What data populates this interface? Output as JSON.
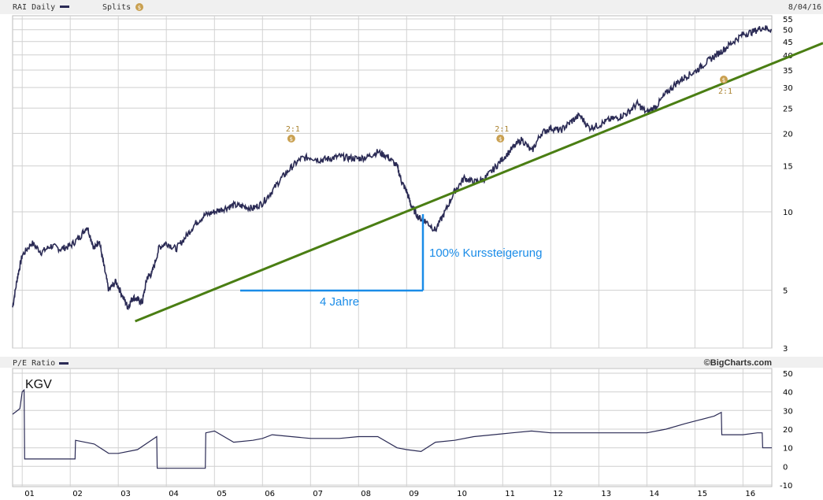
{
  "header": {
    "symbol_label": "RAI Daily",
    "splits_label": "Splits",
    "date": "8/04/16",
    "pe_label": "P/E Ratio",
    "brand": "©BigCharts.com",
    "series_color": "#2b2b55",
    "split_badge_color": "#c9a050"
  },
  "annotations": {
    "kursanstieg": "100% Kurssteigerung",
    "jahre": "4 Jahre",
    "kgv": "KGV"
  },
  "chart_data": [
    {
      "type": "line",
      "title": "RAI Daily",
      "yscale": "log",
      "ylim": [
        3,
        55
      ],
      "xlim": [
        2000.8,
        2016.6
      ],
      "grid": true,
      "y_ticks": [
        3,
        5,
        10,
        15,
        20,
        25,
        30,
        35,
        40,
        45,
        50,
        55
      ],
      "x_ticks": [
        "01",
        "02",
        "03",
        "04",
        "05",
        "06",
        "07",
        "08",
        "09",
        "10",
        "11",
        "12",
        "13",
        "14",
        "15",
        "16"
      ],
      "series": [
        {
          "name": "RAI Daily",
          "x": [
            2000.8,
            2000.9,
            2001.0,
            2001.2,
            2001.4,
            2001.6,
            2001.8,
            2002.0,
            2002.2,
            2002.35,
            2002.5,
            2002.6,
            2002.7,
            2002.8,
            2002.95,
            2003.1,
            2003.2,
            2003.3,
            2003.4,
            2003.5,
            2003.6,
            2003.7,
            2003.85,
            2004.0,
            2004.2,
            2004.4,
            2004.6,
            2004.8,
            2005.0,
            2005.2,
            2005.4,
            2005.6,
            2005.8,
            2006.0,
            2006.2,
            2006.4,
            2006.6,
            2006.8,
            2007.0,
            2007.2,
            2007.4,
            2007.6,
            2007.8,
            2008.0,
            2008.2,
            2008.4,
            2008.6,
            2008.8,
            2008.9,
            2009.0,
            2009.1,
            2009.25,
            2009.4,
            2009.6,
            2009.8,
            2010.0,
            2010.2,
            2010.4,
            2010.6,
            2010.8,
            2011.0,
            2011.2,
            2011.4,
            2011.6,
            2011.8,
            2012.0,
            2012.2,
            2012.4,
            2012.6,
            2012.8,
            2013.0,
            2013.2,
            2013.4,
            2013.6,
            2013.8,
            2014.0,
            2014.2,
            2014.4,
            2014.6,
            2014.8,
            2015.0,
            2015.2,
            2015.4,
            2015.6,
            2015.8,
            2016.0,
            2016.2,
            2016.4,
            2016.6
          ],
          "y": [
            4.3,
            5.6,
            6.8,
            7.6,
            7.0,
            7.4,
            7.2,
            7.4,
            8.0,
            8.8,
            7.2,
            7.8,
            6.2,
            5.0,
            5.4,
            4.7,
            4.3,
            4.7,
            4.6,
            4.5,
            5.6,
            5.8,
            7.3,
            7.6,
            7.2,
            8.0,
            9.0,
            9.7,
            10.0,
            10.3,
            10.6,
            10.5,
            10.3,
            10.8,
            12.0,
            13.5,
            14.8,
            16.0,
            16.2,
            15.8,
            16.0,
            16.3,
            16.1,
            16.0,
            16.3,
            17.0,
            16.3,
            15.0,
            13.0,
            12.0,
            10.5,
            9.5,
            9.2,
            8.5,
            10.0,
            12.0,
            13.5,
            13.0,
            13.3,
            14.5,
            16.0,
            17.5,
            19.0,
            17.0,
            20.0,
            21.0,
            20.5,
            22.0,
            23.5,
            21.0,
            21.5,
            22.5,
            23.0,
            24.0,
            26.0,
            24.0,
            25.5,
            28.5,
            31.0,
            33.0,
            34.5,
            37.0,
            39.5,
            42.0,
            45.0,
            48.0,
            49.0,
            51.0,
            50.0
          ]
        },
        {
          "name": "",
          "x": [
            2003.35,
            2016.6
          ],
          "y": [
            3.8,
            37.0
          ]
        }
      ],
      "splits": [
        {
          "x": 2006.6,
          "label": "2:1"
        },
        {
          "x": 2010.95,
          "label": "2:1"
        },
        {
          "x": 2015.6,
          "label": "2:1"
        }
      ]
    },
    {
      "type": "line",
      "title": "P/E Ratio",
      "ylim": [
        -10,
        50
      ],
      "grid": true,
      "y_ticks": [
        -10,
        0,
        10,
        20,
        30,
        40,
        50
      ],
      "x_ticks": [
        "01",
        "02",
        "03",
        "04",
        "05",
        "06",
        "07",
        "08",
        "09",
        "10",
        "11",
        "12",
        "13",
        "14",
        "15",
        "16"
      ],
      "series": [
        {
          "name": "P/E Ratio",
          "x": [
            2000.8,
            2000.95,
            2001.0,
            2001.04,
            2001.05,
            2002.0,
            2002.1,
            2002.11,
            2002.5,
            2002.8,
            2003.0,
            2003.4,
            2003.8,
            2003.81,
            2004.0,
            2004.5,
            2004.81,
            2004.82,
            2005.0,
            2005.4,
            2005.8,
            2006.0,
            2006.2,
            2006.6,
            2007.0,
            2007.6,
            2008.0,
            2008.4,
            2008.8,
            2009.0,
            2009.3,
            2009.6,
            2010.0,
            2010.4,
            2010.8,
            2011.2,
            2011.6,
            2012.0,
            2012.4,
            2012.8,
            2013.2,
            2013.6,
            2014.0,
            2014.4,
            2014.8,
            2015.1,
            2015.4,
            2015.55,
            2015.56,
            2015.8,
            2016.0,
            2016.3,
            2016.4,
            2016.41,
            2016.6
          ],
          "y": [
            28,
            31,
            40,
            41,
            4,
            4,
            4,
            14,
            12,
            7,
            7,
            9,
            16,
            -1,
            -1,
            -1,
            -1,
            18,
            19,
            13,
            14,
            15,
            17,
            16,
            15,
            15,
            16,
            16,
            10,
            9,
            8,
            13,
            14,
            16,
            17,
            18,
            19,
            18,
            18,
            18,
            18,
            18,
            18,
            20,
            23,
            25,
            27,
            29,
            17,
            17,
            17,
            18,
            18,
            10,
            10
          ]
        }
      ]
    }
  ]
}
